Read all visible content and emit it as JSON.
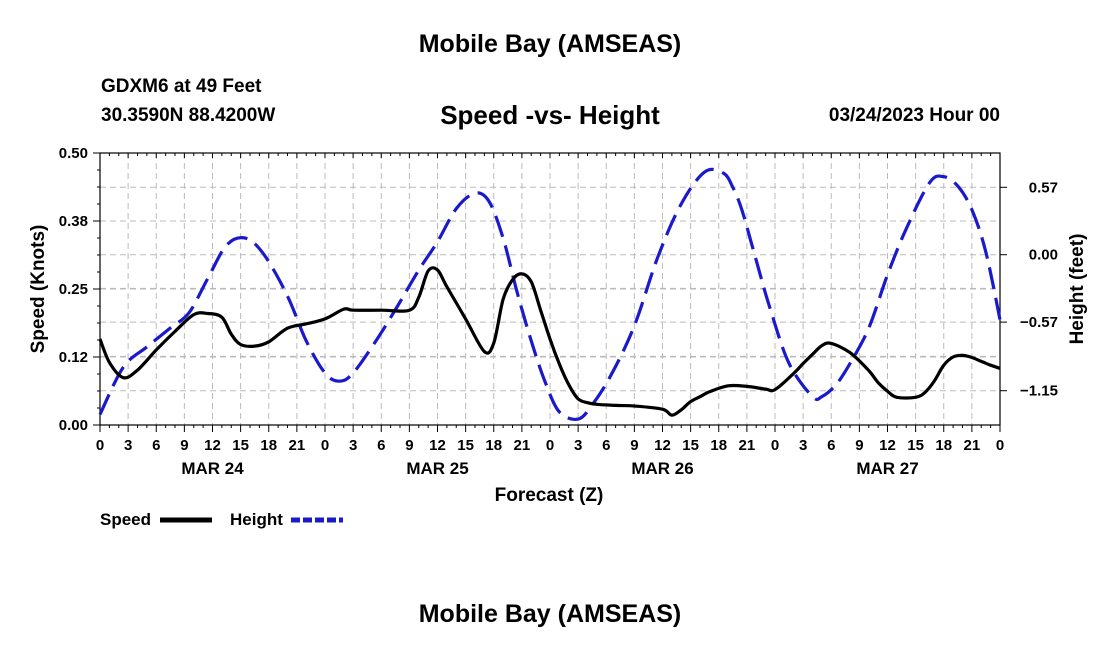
{
  "header": {
    "title": "Mobile Bay (AMSEAS)",
    "station": "GDXM6 at 49 Feet",
    "coords": "30.3590N  88.4200W",
    "subtitle": "Speed -vs- Height",
    "datetime": "03/24/2023 Hour 00"
  },
  "footer": {
    "title": "Mobile Bay (AMSEAS)"
  },
  "chart_data": {
    "type": "line",
    "title": "Speed -vs- Height",
    "xlabel": "Forecast (Z)",
    "ylabel": "Speed (Knots)",
    "y2label": "Height (feet)",
    "x_unit": "hours from 03/24 00Z",
    "xlim": [
      0,
      96
    ],
    "ylim": [
      0,
      0.5
    ],
    "y2lim": [
      -1.44,
      0.86
    ],
    "x_ticks": [
      0,
      3,
      6,
      9,
      12,
      15,
      18,
      21,
      24,
      27,
      30,
      33,
      36,
      39,
      42,
      45,
      48,
      51,
      54,
      57,
      60,
      63,
      66,
      69,
      72,
      75,
      78,
      81,
      84,
      87,
      90,
      93,
      96
    ],
    "x_tick_labels": [
      "0",
      "3",
      "6",
      "9",
      "12",
      "15",
      "18",
      "21",
      "0",
      "3",
      "6",
      "9",
      "12",
      "15",
      "18",
      "21",
      "0",
      "3",
      "6",
      "9",
      "12",
      "15",
      "18",
      "21",
      "0",
      "3",
      "6",
      "9",
      "12",
      "15",
      "18",
      "21",
      "0"
    ],
    "day_labels": [
      {
        "label": "MAR 24",
        "x": 12
      },
      {
        "label": "MAR 25",
        "x": 36
      },
      {
        "label": "MAR 26",
        "x": 60
      },
      {
        "label": "MAR 27",
        "x": 84
      }
    ],
    "y_ticks": [
      0,
      0.125,
      0.25,
      0.375,
      0.5
    ],
    "y_tick_labels": [
      "0.00",
      "0.12",
      "0.25",
      "0.38",
      "0.50"
    ],
    "y2_ticks": [
      -1.15,
      -0.57,
      0.0,
      0.57
    ],
    "y2_tick_labels": [
      "−1.15",
      "−0.57",
      "0.00",
      "0.57"
    ],
    "grid": true,
    "legend": "bottom-left",
    "series": [
      {
        "name": "Speed",
        "axis": "left",
        "color": "#000000",
        "dash": "solid",
        "x": [
          0,
          1,
          2.5,
          4,
          6,
          8,
          10,
          11.5,
          13,
          14,
          15,
          16.5,
          18,
          20,
          22,
          24,
          26,
          27,
          30,
          33,
          34,
          35,
          36,
          37,
          39,
          41,
          42,
          43,
          44,
          45,
          46,
          47,
          48,
          49,
          50,
          51,
          52,
          53,
          55,
          57,
          60,
          61,
          62,
          63,
          64,
          65,
          67,
          69,
          71,
          72,
          74,
          75,
          76,
          77,
          78,
          80,
          82,
          83,
          84,
          85,
          87,
          88,
          89,
          90,
          91,
          92,
          93,
          94,
          95,
          96
        ],
        "values": [
          0.158,
          0.115,
          0.087,
          0.101,
          0.138,
          0.172,
          0.203,
          0.205,
          0.198,
          0.167,
          0.148,
          0.145,
          0.153,
          0.178,
          0.186,
          0.195,
          0.213,
          0.211,
          0.211,
          0.211,
          0.235,
          0.283,
          0.285,
          0.254,
          0.195,
          0.135,
          0.151,
          0.231,
          0.267,
          0.278,
          0.263,
          0.211,
          0.158,
          0.112,
          0.074,
          0.048,
          0.041,
          0.038,
          0.036,
          0.035,
          0.029,
          0.018,
          0.028,
          0.043,
          0.052,
          0.061,
          0.072,
          0.071,
          0.066,
          0.065,
          0.095,
          0.113,
          0.13,
          0.146,
          0.15,
          0.133,
          0.1,
          0.078,
          0.062,
          0.051,
          0.051,
          0.06,
          0.081,
          0.11,
          0.125,
          0.128,
          0.124,
          0.117,
          0.11,
          0.104
        ]
      },
      {
        "name": "Height",
        "axis": "right",
        "color": "#1a1acc",
        "dash": "dashed",
        "x": [
          0,
          2.5,
          5,
          7.5,
          9.5,
          11.5,
          13.5,
          15.5,
          17.5,
          20,
          22,
          24,
          25.5,
          27,
          29.5,
          32,
          34,
          36,
          38,
          40,
          41.5,
          43,
          44.5,
          46,
          47.5,
          49,
          51,
          52.5,
          54.5,
          57,
          59.5,
          62,
          64.5,
          66.5,
          67.5,
          68.5,
          70,
          71.5,
          73.5,
          76,
          77,
          78.5,
          80,
          82,
          84,
          86,
          88.5,
          90,
          91.5,
          93,
          94.5,
          96
        ],
        "values": [
          -1.35,
          -0.95,
          -0.78,
          -0.62,
          -0.49,
          -0.2,
          0.08,
          0.14,
          0.0,
          -0.35,
          -0.73,
          -1.0,
          -1.07,
          -1.0,
          -0.72,
          -0.4,
          -0.13,
          0.11,
          0.39,
          0.52,
          0.45,
          0.14,
          -0.32,
          -0.73,
          -1.08,
          -1.33,
          -1.39,
          -1.27,
          -1.02,
          -0.6,
          -0.02,
          0.43,
          0.7,
          0.69,
          0.57,
          0.37,
          -0.05,
          -0.46,
          -0.92,
          -1.2,
          -1.2,
          -1.1,
          -0.92,
          -0.62,
          -0.17,
          0.22,
          0.61,
          0.66,
          0.58,
          0.38,
          0.02,
          -0.55
        ]
      }
    ]
  }
}
